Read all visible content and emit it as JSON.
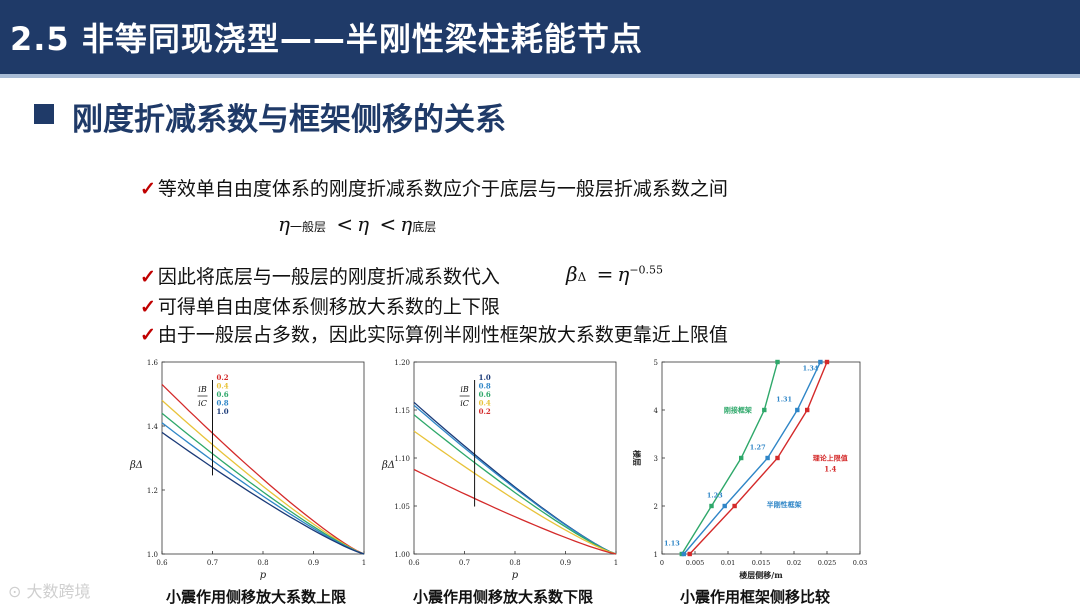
{
  "header": {
    "title": "2.5 非等同现浇型——半刚性梁柱耗能节点"
  },
  "section": {
    "title": "刚度折减系数与框架侧移的关系"
  },
  "bullets": [
    "等效单自由度体系的刚度折减系数应介于底层与一般层折减系数之间",
    "因此将底层与一般层的刚度折减系数代入",
    "可得单自由度体系侧移放大系数的上下限",
    "由于一般层占多数，因此实际算例半刚性框架放大系数更靠近上限值"
  ],
  "check_mark": "✓",
  "formula1": {
    "eta": "η",
    "sub_general": "一般层",
    "lt": "<",
    "sub_bottom": "底层"
  },
  "formula2": {
    "beta": "β",
    "sub": "Δ",
    "eq": "=",
    "eta": "η",
    "exp": "−0.55"
  },
  "captions": [
    "小震作用侧移放大系数上限",
    "小震作用侧移放大系数下限",
    "小震作用框架侧移比较"
  ],
  "watermark": "大数跨境",
  "colors": {
    "header": "#1f3a68",
    "check": "#c00000",
    "ratio_0_2": "#d42a2a",
    "ratio_0_4": "#e8c33a",
    "ratio_0_6": "#2ea86a",
    "ratio_0_8": "#2f86c7",
    "ratio_1_0": "#1a3a78"
  },
  "chart_data": [
    {
      "type": "line",
      "xlabel": "p",
      "ylabel": "βΔ",
      "xlim": [
        0.6,
        1.0
      ],
      "ylim": [
        1.0,
        1.6
      ],
      "xticks": [
        "0.6",
        "0.7",
        "0.8",
        "0.9",
        "1"
      ],
      "yticks": [
        "1.0",
        "1.2",
        "1.4",
        "1.6"
      ],
      "legend_title_num": "iB",
      "legend_title_den": "iC",
      "legend": [
        "0.2",
        "0.4",
        "0.6",
        "0.8",
        "1.0"
      ],
      "marker_x": 0.7,
      "series": [
        {
          "name": "0.2",
          "color": "#d42a2a",
          "start": 1.53
        },
        {
          "name": "0.4",
          "color": "#e8c33a",
          "start": 1.48
        },
        {
          "name": "0.6",
          "color": "#2ea86a",
          "start": 1.44
        },
        {
          "name": "0.8",
          "color": "#2f86c7",
          "start": 1.41
        },
        {
          "name": "1.0",
          "color": "#1a3a78",
          "start": 1.38
        }
      ]
    },
    {
      "type": "line",
      "xlabel": "p",
      "ylabel": "βΔ",
      "xlim": [
        0.6,
        1.0
      ],
      "ylim": [
        1.0,
        1.2
      ],
      "xticks": [
        "0.6",
        "0.7",
        "0.8",
        "0.9",
        "1"
      ],
      "yticks": [
        "1.00",
        "1.05",
        "1.10",
        "1.15",
        "1.20"
      ],
      "legend_title_num": "iB",
      "legend_title_den": "iC",
      "legend": [
        "1.0",
        "0.8",
        "0.6",
        "0.4",
        "0.2"
      ],
      "marker_x": 0.72,
      "series": [
        {
          "name": "1.0",
          "color": "#1a3a78",
          "start": 1.158
        },
        {
          "name": "0.8",
          "color": "#2f86c7",
          "start": 1.155
        },
        {
          "name": "0.6",
          "color": "#2ea86a",
          "start": 1.145
        },
        {
          "name": "0.4",
          "color": "#e8c33a",
          "start": 1.128
        },
        {
          "name": "0.2",
          "color": "#d42a2a",
          "start": 1.088
        }
      ]
    },
    {
      "type": "line",
      "xlabel": "楼层侧移/m",
      "ylabel": "楼层",
      "xlim": [
        0,
        0.03
      ],
      "ylim": [
        1,
        5
      ],
      "xticks": [
        "0",
        "0.005",
        "0.01",
        "0.015",
        "0.02",
        "0.025",
        "0.03"
      ],
      "yticks": [
        "1",
        "2",
        "3",
        "4",
        "5"
      ],
      "series": [
        {
          "name": "刚接框架",
          "color": "#2ea86a",
          "x": [
            0.003,
            0.0075,
            0.012,
            0.0155,
            0.0175
          ],
          "y": [
            1,
            2,
            3,
            4,
            5
          ]
        },
        {
          "name": "半刚性框架",
          "color": "#2f86c7",
          "x": [
            0.0033,
            0.0095,
            0.016,
            0.0205,
            0.024
          ],
          "y": [
            1,
            2,
            3,
            4,
            5
          ]
        },
        {
          "name": "理论上限值",
          "color": "#d42a2a",
          "x": [
            0.0042,
            0.011,
            0.0175,
            0.022,
            0.025
          ],
          "y": [
            1,
            2,
            3,
            4,
            5
          ]
        }
      ],
      "ratio_labels": [
        {
          "text": "1.13",
          "x": 0.0015,
          "y": 1.18
        },
        {
          "text": "1.23",
          "x": 0.008,
          "y": 2.18
        },
        {
          "text": "1.27",
          "x": 0.0145,
          "y": 3.18
        },
        {
          "text": "1.31",
          "x": 0.0185,
          "y": 4.18
        },
        {
          "text": "1.34",
          "x": 0.0225,
          "y": 4.82
        }
      ],
      "theory_label_2": "1.4"
    }
  ]
}
